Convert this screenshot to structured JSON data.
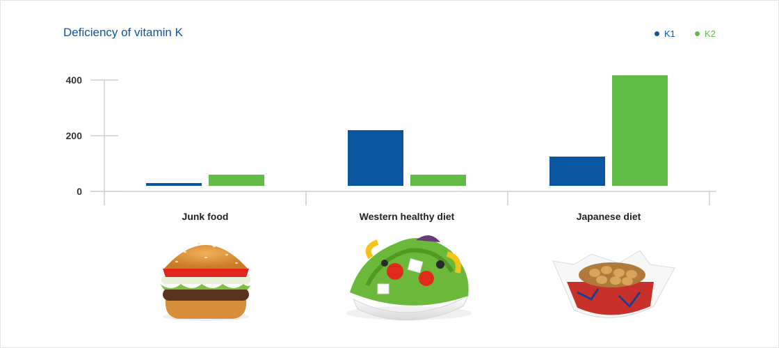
{
  "chart_data": {
    "type": "bar",
    "title": "Deficiency of vitamin K",
    "categories": [
      "Junk food",
      "Western healthy diet",
      "Japanese diet"
    ],
    "series": [
      {
        "name": "K1",
        "color": "#0a56a3",
        "values": [
          10,
          200,
          105
        ]
      },
      {
        "name": "K2",
        "color": "#62bb47",
        "values": [
          40,
          40,
          397
        ]
      }
    ],
    "yticks": [
      0,
      200,
      400
    ],
    "ylim": [
      0,
      400
    ],
    "grid": false,
    "legend_position": "top-right",
    "category_images": [
      "burger-image",
      "salad-image",
      "natto-bowl-image"
    ]
  }
}
